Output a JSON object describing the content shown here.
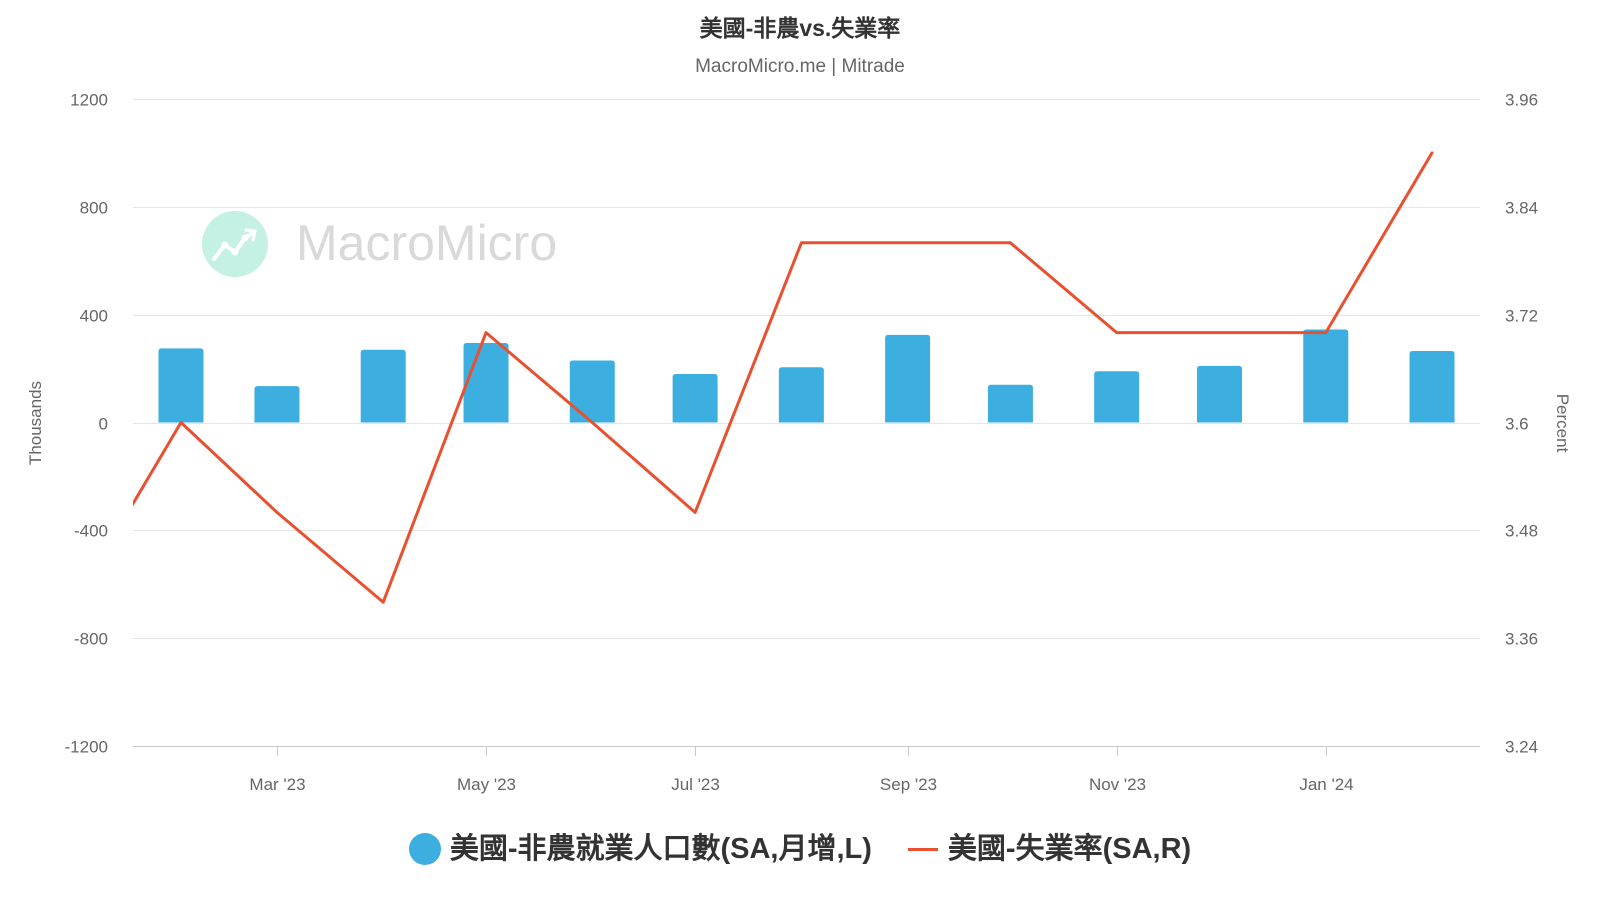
{
  "chart_data": {
    "type": "bar",
    "title": "美國-非農vs.失業率",
    "subtitle": "MacroMicro.me | Mitrade",
    "watermark": "MacroMicro",
    "xlim": [
      "2023-01-18",
      "2024-02-15"
    ],
    "x_ticks": [
      {
        "date": "2023-03-01",
        "label": "Mar '23"
      },
      {
        "date": "2023-05-01",
        "label": "May '23"
      },
      {
        "date": "2023-07-01",
        "label": "Jul '23"
      },
      {
        "date": "2023-09-01",
        "label": "Sep '23"
      },
      {
        "date": "2023-11-01",
        "label": "Nov '23"
      },
      {
        "date": "2024-01-01",
        "label": "Jan '24"
      }
    ],
    "y_left": {
      "label": "Thousands",
      "ylim": [
        -1200,
        1200
      ],
      "ticks": [
        1200,
        800,
        400,
        0,
        -400,
        -800,
        -1200
      ],
      "tick_labels": [
        "1200",
        "800",
        "400",
        "0",
        "-400",
        "-800",
        "-1200"
      ]
    },
    "y_right": {
      "label": "Percent",
      "ylim": [
        3.24,
        3.96
      ],
      "ticks": [
        3.96,
        3.84,
        3.72,
        3.6,
        3.48,
        3.36,
        3.24
      ],
      "tick_labels": [
        "3.96",
        "3.84",
        "3.72",
        "3.6",
        "3.48",
        "3.36",
        "3.24"
      ]
    },
    "grid": true,
    "legend": "bottom",
    "series": [
      {
        "name": "美國-非農就業人口數(SA,月增,L)",
        "type": "bar",
        "axis": "left",
        "color": "#3daee0",
        "x": [
          "2023-02-01",
          "2023-03-01",
          "2023-04-01",
          "2023-05-01",
          "2023-06-01",
          "2023-07-01",
          "2023-08-01",
          "2023-09-01",
          "2023-10-01",
          "2023-11-01",
          "2023-12-01",
          "2024-01-01",
          "2024-02-01"
        ],
        "values": [
          275,
          135,
          270,
          295,
          230,
          180,
          205,
          325,
          140,
          190,
          210,
          345,
          265
        ]
      },
      {
        "name": "美國-失業率(SA,R)",
        "type": "line",
        "axis": "right",
        "color": "#e8502f",
        "x": [
          "2023-01-01",
          "2023-02-01",
          "2023-03-01",
          "2023-04-01",
          "2023-05-01",
          "2023-06-01",
          "2023-07-01",
          "2023-08-01",
          "2023-09-01",
          "2023-10-01",
          "2023-11-01",
          "2023-12-01",
          "2024-01-01",
          "2024-02-01"
        ],
        "values": [
          3.4,
          3.6,
          3.5,
          3.4,
          3.7,
          3.6,
          3.5,
          3.8,
          3.8,
          3.8,
          3.7,
          3.7,
          3.7,
          3.9
        ]
      }
    ]
  }
}
